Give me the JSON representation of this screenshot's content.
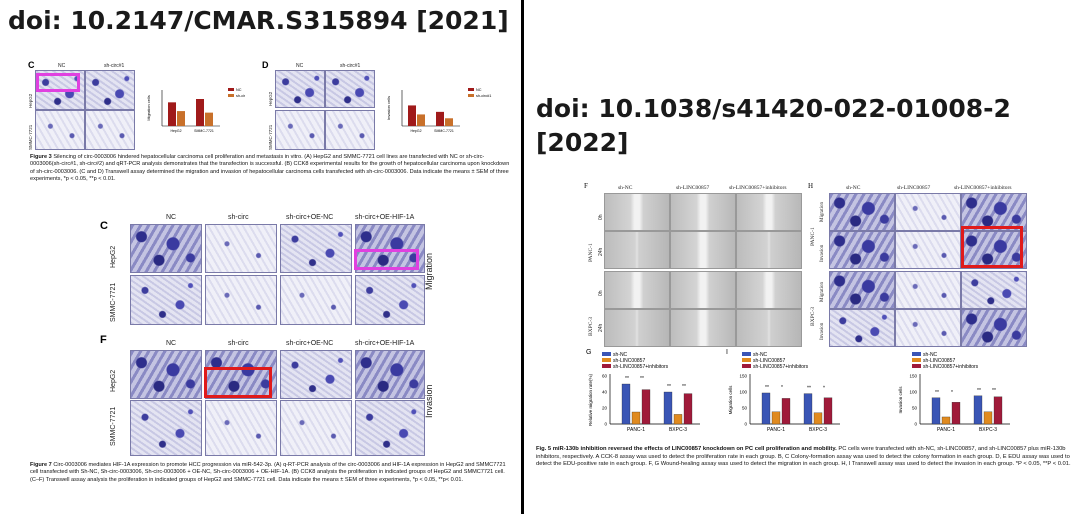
{
  "left": {
    "doi": "doi: 10.2147/CMAR.S315894 [2021]",
    "fig3": {
      "panelC": {
        "letter": "C",
        "cols": [
          "NC",
          "sh-circ#1"
        ],
        "rows": [
          "HepG2",
          "SMMC-7721"
        ],
        "legend": [
          "NC",
          "sh-circ#1"
        ],
        "ylabel": "Migration cells",
        "groups": [
          "HepG2",
          "SMMC-7721"
        ],
        "values": [
          [
            92,
            58
          ],
          [
            105,
            52
          ]
        ]
      },
      "panelD": {
        "letter": "D",
        "cols": [
          "NC",
          "sh-circ#1"
        ],
        "rows": [
          "HepG2",
          "SMMC-7721"
        ],
        "legend": [
          "NC",
          "sh-circ#1"
        ],
        "ylabel": "Invasion cells",
        "groups": [
          "HepG2",
          "SMMC-7721"
        ],
        "values": [
          [
            80,
            45
          ],
          [
            55,
            30
          ]
        ]
      },
      "caption_bold": "Figure 3",
      "caption": "Silencing of circ-0003006 hindered hepatocellular carcinoma cell proliferation and metastasis in vitro. (A) HepG2 and SMMC-7721 cell lines are transfected with NC or sh-circ-0003006(sh-circ#1, sh-circ#2) and qRT-PCR analysis demonstrates that the transfection is successful. (B) CCK8 experimental results for the growth of hepatocellular carcinoma upon knockdown of sh-circ-0003006. (C and D) Transwell assay determined the migration and invasion of hepatocellular carcinoma cells transfected with sh-circ-0003006. Data indicate the means ± SEM of three experiments, *p < 0.05, **p < 0.01."
    },
    "fig7": {
      "panelC": {
        "letter": "C",
        "cols": [
          "NC",
          "sh-circ",
          "sh-circ+OE-NC",
          "sh-circ+OE-HIF-1A"
        ],
        "rows": [
          "HepG2",
          "SMMC-7721"
        ],
        "side": "Migration"
      },
      "panelF": {
        "letter": "F",
        "cols": [
          "NC",
          "sh-circ",
          "sh-circ+OE-NC",
          "sh-circ+OE-HIF-1A"
        ],
        "rows": [
          "HepG2",
          "SMMC-7721"
        ],
        "side": "Invasion"
      },
      "caption_bold": "Figure 7",
      "caption": "Circ-0003006 mediates HIF-1A expression to promote HCC progression via miR-542-3p. (A) q-RT-PCR analysis of the circ-0003006 and HIF-1A expression in HepG2 and SMMC7721 cell transfected with Sh-NC, Sh-circ-0003006, Sh-circ-0003006 + OE-NC, Sh-circ-0003006 + OE-HIF-1A. (B) CCK8 analysis the proliferation in indicated groups of HepG2 and SMMC7721 cell. (C–F) Transwell assay analysis the proliferation in indicated groups of HepG2 and SMMC-7721 cell. Data indicate the means ± SEM of three experiments, *p < 0.05, **p< 0.01."
    }
  },
  "right": {
    "doi": "doi: 10.1038/s41420-022-01008-2 [2022]",
    "panelF": {
      "letter": "F",
      "cols": [
        "sh-NC",
        "sh-LINC00857",
        "sh-LINC00857+inhibitors"
      ],
      "groups": [
        "PANC-1",
        "BXPC-3"
      ],
      "times": [
        "0h",
        "24h"
      ]
    },
    "panelH": {
      "letter": "H",
      "cols": [
        "sh-NC",
        "sh-LINC00857",
        "sh-LINC00857+inhibitors"
      ],
      "groups": [
        "PANC-1",
        "BXPC-3"
      ],
      "assays": [
        "Migration",
        "Invasion"
      ]
    },
    "legend": [
      "sh-NC",
      "sh-LINC00857",
      "sh-LINC00857+inhibitors"
    ],
    "colors": [
      "#3a55b5",
      "#e08a1e",
      "#a01a3a"
    ],
    "panelG": {
      "letter": "G",
      "ylabel": "Relative migration rate(%)",
      "ticks": [
        "0",
        "20",
        "40",
        "60"
      ],
      "ymax": 60,
      "groups": [
        "PANC-1",
        "BXPC-3"
      ],
      "values": [
        [
          50,
          15,
          43
        ],
        [
          40,
          12,
          38
        ]
      ],
      "sig": [
        "**",
        "**",
        "**",
        "**"
      ]
    },
    "panelI": {
      "letter": "I",
      "ylabel": "Migration cells",
      "ticks": [
        "0",
        "50",
        "100",
        "150"
      ],
      "ymax": 150,
      "groups": [
        "PANC-1",
        "BXPC-3"
      ],
      "values": [
        [
          97,
          38,
          80
        ],
        [
          95,
          35,
          82
        ]
      ],
      "sig": [
        "**",
        "*",
        "**",
        "*"
      ]
    },
    "panelJ": {
      "letter": "",
      "ylabel": "Invasion cells",
      "ticks": [
        "0",
        "50",
        "100",
        "150"
      ],
      "ymax": 150,
      "groups": [
        "PANC-1",
        "BXPC-3"
      ],
      "values": [
        [
          82,
          22,
          68
        ],
        [
          88,
          38,
          85
        ]
      ],
      "sig": [
        "**",
        "*",
        "**",
        "**"
      ]
    },
    "caption_bold": "Fig. 5   miR-130b inhibition reversed the effects of LINC00857 knockdown on PC cell proliferation and mobility.",
    "caption": "PC cells were transfected with sh-NC, sh-LINC00857, and sh-LINC00857 plus miR-130b inhibitors, respectively. A CCK-8 assay was used to detect the proliferation rate in each group. B, C Colony-formation assay was used to detect the colony formation in each group. D, E EDU assay was used to detect the EDU-positive rate in each group. F, G Wound-healing assay was used to detect the migration in each group. H, I Transwell assay was used to detect the invasion in each group. *P < 0.05, **P < 0.01."
  }
}
